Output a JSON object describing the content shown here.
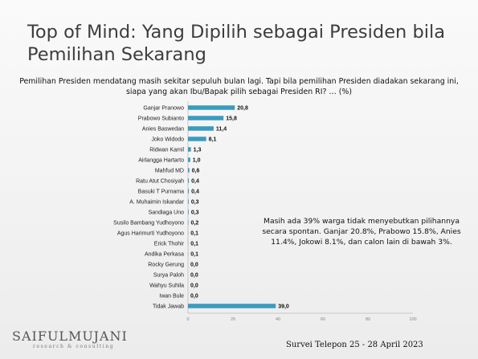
{
  "title": "Top of Mind: Yang Dipilih sebagai Presiden bila Pemilihan Sekarang",
  "subtitle": "Pemilihan Presiden mendatang masih sekitar sepuluh bulan lagi. Tapi bila pemilihan Presiden diadakan sekarang ini, siapa yang akan Ibu/Bapak pilih sebagai Presiden RI? … (%)",
  "note": "Masih ada 39% warga tidak menyebutkan pilihannya secara spontan. Ganjar 20.8%, Prabowo 15.8%, Anies 11.4%, Jokowi 8.1%, dan calon lain di bawah 3%.",
  "logo": {
    "main": "SAIFULMUJANI",
    "sub": "research & consulting"
  },
  "footer": "Survei Telepon 25 - 28 April 2023",
  "colors": {
    "bar": "#3a9bbf",
    "axis": "#c8c8c8",
    "title": "#3d3d3d"
  },
  "chart_data": {
    "type": "bar",
    "orientation": "horizontal",
    "categories": [
      "Ganjar Pranowo",
      "Prabowo Subianto",
      "Anies Baswedan",
      "Joko Widodo",
      "Ridwan Kamil",
      "Airlangga Hartarto",
      "Mahfud MD",
      "Ratu Atut Chosiyah",
      "Basuki T Purnama",
      "A. Muhaimin Iskandar",
      "Sandiaga Uno",
      "Susilo Bambang Yudhoyono",
      "Agus Harimurti Yudhoyono",
      "Erick Thohir",
      "Andika Perkasa",
      "Rocky Gerung",
      "Surya Paloh",
      "Wahyu Suhila",
      "Iwan Bule",
      "Tidak Jawab"
    ],
    "values": [
      20.8,
      15.8,
      11.4,
      8.1,
      1.3,
      1.0,
      0.6,
      0.4,
      0.4,
      0.3,
      0.3,
      0.2,
      0.1,
      0.1,
      0.1,
      0.0,
      0.0,
      0.0,
      0.0,
      39.0
    ],
    "value_labels": [
      "20,8",
      "15,8",
      "11,4",
      "8,1",
      "1,3",
      "1,0",
      "0,6",
      "0,4",
      "0,4",
      "0,3",
      "0,3",
      "0,2",
      "0,1",
      "0,1",
      "0,1",
      "0,0",
      "0,0",
      "0,0",
      "0,0",
      "39,0"
    ],
    "xlim": [
      0,
      100
    ],
    "xticks": [
      0,
      20,
      40,
      60,
      80,
      100
    ],
    "grid": false,
    "legend": "none"
  }
}
